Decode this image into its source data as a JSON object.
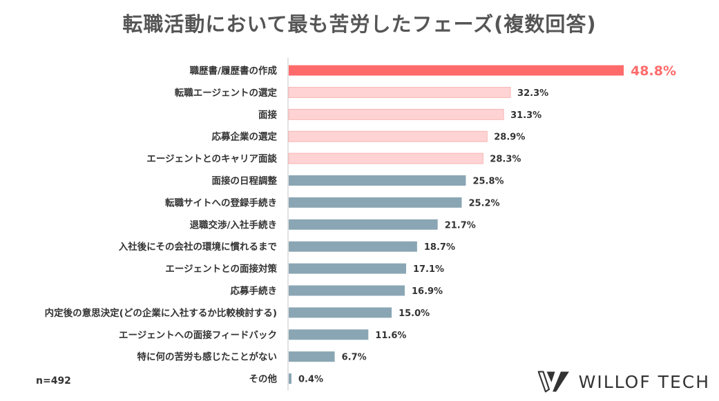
{
  "chart_data": {
    "type": "bar",
    "orientation": "horizontal",
    "title": "転職活動において最も苦労したフェーズ(複数回答)",
    "categories": [
      "職歴書/履歴書の作成",
      "転職エージェントの選定",
      "面接",
      "応募企業の選定",
      "エージェントとのキャリア面談",
      "面接の日程調整",
      "転職サイトへの登録手続き",
      "退職交渉/入社手続き",
      "入社後にその会社の環境に慣れるまで",
      "エージェントとの面接対策",
      "応募手続き",
      "内定後の意思決定(どの企業に入社するか比較検討する)",
      "エージェントへの面接フィードバック",
      "特に何の苦労も感じたことがない",
      "その他"
    ],
    "values": [
      48.8,
      32.3,
      31.3,
      28.9,
      28.3,
      25.8,
      25.2,
      21.7,
      18.7,
      17.1,
      16.9,
      15.0,
      11.6,
      6.7,
      0.4
    ],
    "value_labels": [
      "48.8%",
      "32.3%",
      "31.3%",
      "28.9%",
      "28.3%",
      "25.8%",
      "25.2%",
      "21.7%",
      "18.7%",
      "17.1%",
      "16.9%",
      "15.0%",
      "11.6%",
      "6.7%",
      "0.4%"
    ],
    "xlim": [
      0,
      50
    ],
    "colors": {
      "top": "#ff6b6b",
      "highlight": "#ffd3d3",
      "highlight_border": "#f7b5b5",
      "default": "#8aa6b4",
      "axis": "#d9d9d9",
      "category_text": "#333333",
      "value_text": "#333333",
      "top_value_text": "#ff6b6b"
    },
    "highlight_count": 5
  },
  "footer": {
    "sample_size": "n=492",
    "brand": "WILLOF TECH",
    "logo_icon": "willof-w-logo-icon"
  }
}
